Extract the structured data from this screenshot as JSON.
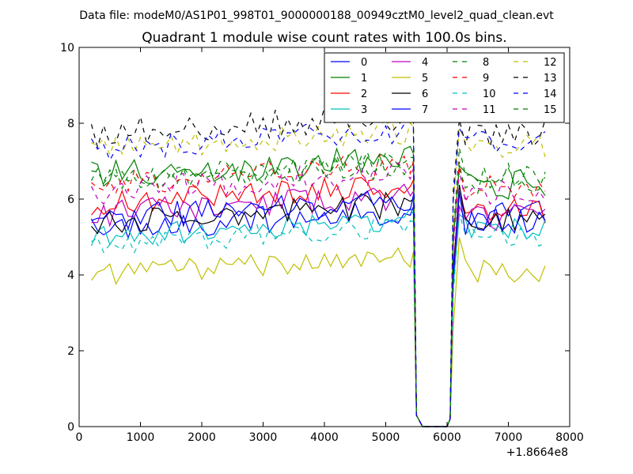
{
  "chart_data": {
    "type": "line",
    "suptitle": "Data file: modeM0/AS1P01_998T01_9000000188_00949cztM0_level2_quad_clean.evt",
    "title": "Quadrant 1 module wise count rates with 100.0s bins.",
    "xlabel": "",
    "ylabel": "",
    "x_offset_label": "+1.8664e8",
    "xlim": [
      0,
      8000
    ],
    "ylim": [
      0,
      10
    ],
    "xticks": [
      "0",
      "1000",
      "2000",
      "3000",
      "4000",
      "5000",
      "6000",
      "7000",
      "8000"
    ],
    "yticks": [
      "0",
      "2",
      "4",
      "6",
      "8",
      "10"
    ],
    "grid": false,
    "legend_position": "top-right",
    "x_start": 200,
    "x_step": 100,
    "gap_start": 5500,
    "gap_end": 6000,
    "gap_edge_values": {
      "x_left": 5450,
      "x_right": 6050,
      "low": 0.0
    },
    "series": [
      {
        "name": "0",
        "color": "#0000ff",
        "dash": "solid",
        "level_before": 5.2,
        "level_after": 5.6,
        "noise": 0.35
      },
      {
        "name": "1",
        "color": "#008000",
        "dash": "solid",
        "level_before": 6.6,
        "level_after": 6.4,
        "noise": 0.4
      },
      {
        "name": "2",
        "color": "#ff0000",
        "dash": "solid",
        "level_before": 5.9,
        "level_after": 5.7,
        "noise": 0.35
      },
      {
        "name": "3",
        "color": "#00bfbf",
        "dash": "solid",
        "level_before": 5.0,
        "level_after": 5.2,
        "noise": 0.3
      },
      {
        "name": "4",
        "color": "#bf00bf",
        "dash": "solid",
        "level_before": 5.6,
        "level_after": 5.5,
        "noise": 0.35
      },
      {
        "name": "5",
        "color": "#bfbf00",
        "dash": "solid",
        "level_before": 4.0,
        "level_after": 4.1,
        "noise": 0.3
      },
      {
        "name": "6",
        "color": "#000000",
        "dash": "solid",
        "level_before": 5.4,
        "level_after": 5.5,
        "noise": 0.35
      },
      {
        "name": "7",
        "color": "#0000ff",
        "dash": "solid",
        "level_before": 5.5,
        "level_after": 5.4,
        "noise": 0.35
      },
      {
        "name": "8",
        "color": "#008000",
        "dash": "dashed",
        "level_before": 6.5,
        "level_after": 6.6,
        "noise": 0.35
      },
      {
        "name": "9",
        "color": "#ff0000",
        "dash": "dashed",
        "level_before": 6.4,
        "level_after": 6.3,
        "noise": 0.35
      },
      {
        "name": "10",
        "color": "#00bfbf",
        "dash": "dashed",
        "level_before": 4.8,
        "level_after": 5.0,
        "noise": 0.3
      },
      {
        "name": "11",
        "color": "#bf00bf",
        "dash": "dashed",
        "level_before": 6.2,
        "level_after": 6.2,
        "noise": 0.35
      },
      {
        "name": "12",
        "color": "#bfbf00",
        "dash": "dashed",
        "level_before": 7.3,
        "level_after": 7.4,
        "noise": 0.35
      },
      {
        "name": "13",
        "color": "#000000",
        "dash": "dashed",
        "level_before": 7.7,
        "level_after": 7.7,
        "noise": 0.4
      },
      {
        "name": "14",
        "color": "#0000ff",
        "dash": "dashed",
        "level_before": 7.3,
        "level_after": 7.5,
        "noise": 0.35
      },
      {
        "name": "15",
        "color": "#008000",
        "dash": "dashed",
        "level_before": 6.4,
        "level_after": 6.5,
        "noise": 0.35
      }
    ]
  }
}
